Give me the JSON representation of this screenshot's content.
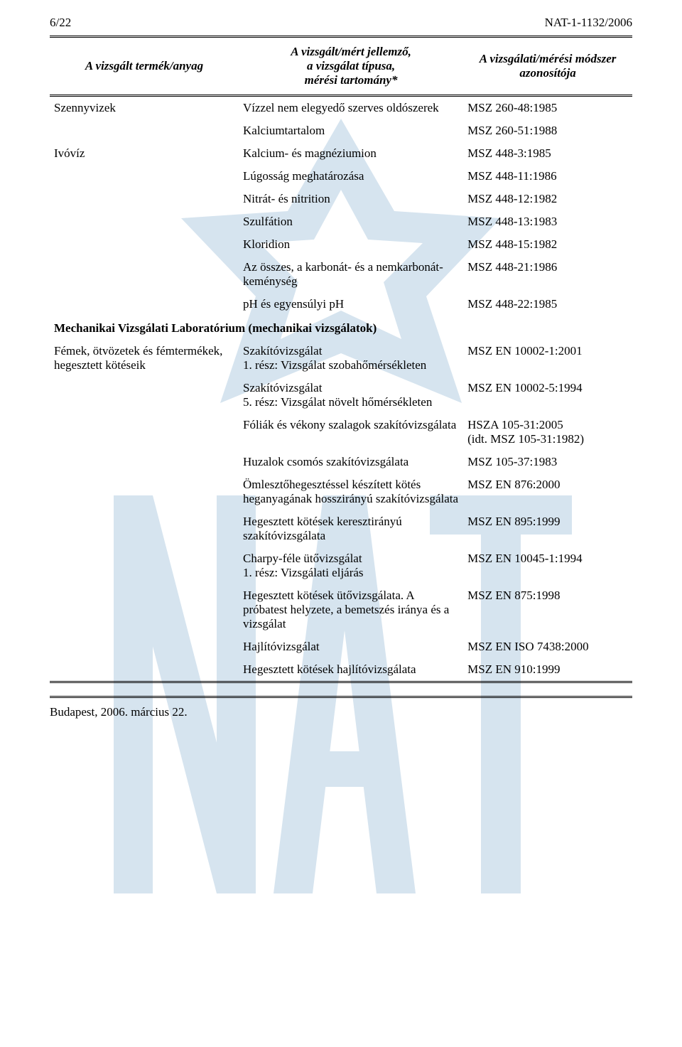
{
  "page_header": {
    "left": "6/22",
    "right": "NAT-1-1132/2006"
  },
  "table_head": {
    "col1": "A vizsgált termék/anyag",
    "col2_l1": "A vizsgált/mért jellemző,",
    "col2_l2": "a vizsgálat típusa,",
    "col2_l3": "mérési tartomány*",
    "col3_l1": "A vizsgálati/mérési módszer",
    "col3_l2": "azonosítója"
  },
  "rows": [
    {
      "c1": "Szennyvizek",
      "c2": "Vízzel nem elegyedő szerves oldószerek",
      "c3": "MSZ 260-48:1985"
    },
    {
      "c1": "",
      "c2": "Kalciumtartalom",
      "c3": "MSZ 260-51:1988"
    },
    {
      "c1": "Ivóvíz",
      "c2": "Kalcium- és magnéziumion",
      "c3": "MSZ 448-3:1985"
    },
    {
      "c1": "",
      "c2": "Lúgosság meghatározása",
      "c3": "MSZ 448-11:1986"
    },
    {
      "c1": "",
      "c2": "Nitrát- és nitrition",
      "c3": "MSZ 448-12:1982"
    },
    {
      "c1": "",
      "c2": "Szulfátion",
      "c3": "MSZ 448-13:1983"
    },
    {
      "c1": "",
      "c2": "Kloridion",
      "c3": "MSZ 448-15:1982"
    },
    {
      "c1": "",
      "c2": "Az összes, a karbonát- és a nemkarbonát-keménység",
      "c3": "MSZ 448-21:1986"
    },
    {
      "c1": "",
      "c2": "pH és egyensúlyi pH",
      "c3": "MSZ 448-22:1985"
    }
  ],
  "section_title": "Mechanikai Vizsgálati Laboratórium (mechanikai vizsgálatok)",
  "rows2": [
    {
      "c1": "Fémek, ötvözetek és fémtermékek, hegesztett kötéseik",
      "c2": "Szakítóvizsgálat\n1. rész: Vizsgálat szobahőmérsékleten",
      "c3": "MSZ EN 10002-1:2001"
    },
    {
      "c1": "",
      "c2": "Szakítóvizsgálat\n5. rész: Vizsgálat növelt hőmérsékleten",
      "c3": "MSZ EN 10002-5:1994"
    },
    {
      "c1": "",
      "c2": "Fóliák és vékony szalagok szakítóvizsgálata",
      "c3": "HSZA 105-31:2005\n(idt. MSZ 105-31:1982)"
    },
    {
      "c1": "",
      "c2": "Huzalok csomós szakítóvizsgálata",
      "c3": "MSZ 105-37:1983"
    },
    {
      "c1": "",
      "c2": "Ömlesztőhegesztéssel készített kötés heganyagának hosszirányú szakítóvizsgálata",
      "c3": "MSZ EN 876:2000"
    },
    {
      "c1": "",
      "c2": "Hegesztett kötések keresztirányú szakítóvizsgálata",
      "c3": "MSZ EN 895:1999"
    },
    {
      "c1": "",
      "c2": "Charpy-féle ütővizsgálat\n1. rész: Vizsgálati eljárás",
      "c3": "MSZ EN 10045-1:1994"
    },
    {
      "c1": "",
      "c2": "Hegesztett kötések ütővizsgálata. A próbatest helyzete, a bemetszés iránya és a vizsgálat",
      "c3": "MSZ EN 875:1998"
    },
    {
      "c1": "",
      "c2": "Hajlítóvizsgálat",
      "c3": "MSZ EN ISO 7438:2000"
    },
    {
      "c1": "",
      "c2": "Hegesztett kötések hajlítóvizsgálata",
      "c3": "MSZ EN 910:1999"
    }
  ],
  "footer": "Budapest, 2006. március 22.",
  "colors": {
    "text": "#000000",
    "background": "#ffffff",
    "watermark": "#d6e4ef"
  }
}
